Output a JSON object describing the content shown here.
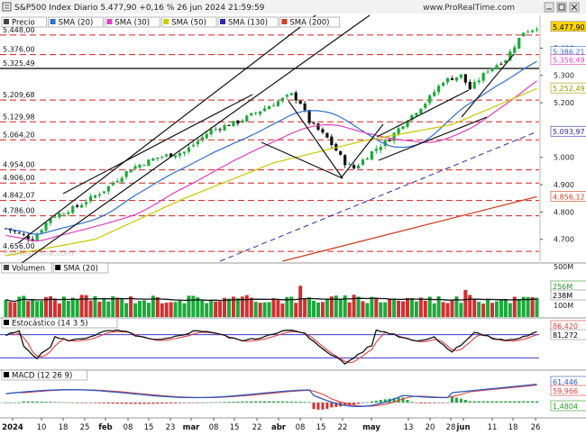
{
  "header": {
    "title": "S&P500 Index Diario 5.477,90 +0,16 % 26 jun 2024 21:59:59",
    "site": "www.ProRealTime.com",
    "watermark": "ProRealTime.com"
  },
  "chart_data": [
    {
      "panel": "price",
      "type": "candlestick",
      "legend": [
        {
          "name": "Precio",
          "color": "#444444"
        },
        {
          "name": "SMA (20)",
          "color": "#2f6fd0"
        },
        {
          "name": "SMA (30)",
          "color": "#e040c0"
        },
        {
          "name": "SMA (50)",
          "color": "#cccc00"
        },
        {
          "name": "SMA (130)",
          "color": "#2a2aa8"
        },
        {
          "name": "SMA (200)",
          "color": "#d04020"
        }
      ],
      "ylim": [
        4620,
        5520
      ],
      "right_axis_ticks": [
        "5.400",
        "5.300",
        "5.200",
        "5.000",
        "4.900",
        "4.800",
        "4.700"
      ],
      "right_value_tags": [
        {
          "label": "5.477,90",
          "value": 5477.9,
          "bg": "#ffd500",
          "fg": "#000000"
        },
        {
          "label": "5.386,21",
          "value": 5386.21,
          "bg": "#ffffff",
          "fg": "#2f6fd0"
        },
        {
          "label": "5.356,49",
          "value": 5356.49,
          "bg": "#ffffff",
          "fg": "#e040c0"
        },
        {
          "label": "5.252,49",
          "value": 5252.49,
          "bg": "#ffffff",
          "fg": "#999900"
        },
        {
          "label": "5.093,97",
          "value": 5093.97,
          "bg": "#ffffff",
          "fg": "#2a2aa8"
        },
        {
          "label": "4.856,12",
          "value": 4856.12,
          "bg": "#ffffff",
          "fg": "#d04020"
        }
      ],
      "levels": [
        {
          "label": "5.448,00",
          "value": 5448,
          "style": "dashed"
        },
        {
          "label": "5.376,00",
          "value": 5376,
          "style": "dashed"
        },
        {
          "label": "5.325,49",
          "value": 5325.49,
          "style": "solid"
        },
        {
          "label": "5.209,68",
          "value": 5209.68,
          "style": "dashed"
        },
        {
          "label": "5.129,98",
          "value": 5129.98,
          "style": "dashed"
        },
        {
          "label": "5.064,20",
          "value": 5064.2,
          "style": "dashed"
        },
        {
          "label": "4.954,00",
          "value": 4954,
          "style": "dashed"
        },
        {
          "label": "4.906,00",
          "value": 4906,
          "style": "dashed"
        },
        {
          "label": "4.842,07",
          "value": 4842.07,
          "style": "dashed"
        },
        {
          "label": "4.786,00",
          "value": 4786,
          "style": "dashed"
        },
        {
          "label": "4.656,00",
          "value": 4656,
          "style": "dashed"
        }
      ],
      "bars_count": 120,
      "anchors": [
        [
          0,
          4740
        ],
        [
          6,
          4700
        ],
        [
          10,
          4780
        ],
        [
          16,
          4820
        ],
        [
          22,
          4880
        ],
        [
          28,
          4960
        ],
        [
          34,
          5000
        ],
        [
          40,
          5020
        ],
        [
          46,
          5100
        ],
        [
          52,
          5130
        ],
        [
          58,
          5180
        ],
        [
          64,
          5230
        ],
        [
          66,
          5200
        ],
        [
          68,
          5130
        ],
        [
          72,
          5070
        ],
        [
          76,
          4980
        ],
        [
          78,
          4960
        ],
        [
          82,
          5020
        ],
        [
          86,
          5070
        ],
        [
          90,
          5140
        ],
        [
          94,
          5200
        ],
        [
          98,
          5280
        ],
        [
          102,
          5300
        ],
        [
          104,
          5250
        ],
        [
          108,
          5320
        ],
        [
          112,
          5360
        ],
        [
          116,
          5460
        ],
        [
          118,
          5470
        ],
        [
          119,
          5478
        ]
      ],
      "sma20_end": 5386.21,
      "sma30_end": 5356.49,
      "sma50": [
        [
          0,
          4640
        ],
        [
          20,
          4700
        ],
        [
          40,
          4850
        ],
        [
          60,
          4980
        ],
        [
          80,
          5060
        ],
        [
          100,
          5120
        ],
        [
          119,
          5252
        ]
      ],
      "sma130": [
        [
          48,
          4620
        ],
        [
          119,
          5094
        ]
      ],
      "sma200": [
        [
          62,
          4620
        ],
        [
          119,
          4856
        ]
      ]
    },
    {
      "panel": "volume",
      "type": "bar",
      "legend": [
        {
          "name": "Volumen",
          "color": "#444444"
        },
        {
          "name": "SMA (20)",
          "color": "#000000"
        }
      ],
      "axis_labels": [
        "500M",
        "256M",
        "238M",
        "100M"
      ],
      "tags": [
        {
          "label": "256M",
          "bg": "#ffffff",
          "fg": "#2a9a2a"
        },
        {
          "label": "238M",
          "bg": "#ffffff",
          "fg": "#000000"
        }
      ],
      "ylim": [
        0,
        500
      ]
    },
    {
      "panel": "stochastic",
      "type": "line",
      "legend": [
        {
          "name": "Estocástico (14 3 5)",
          "color": "#000000"
        }
      ],
      "tags": [
        {
          "label": "86,420",
          "value": 86.42,
          "fg": "#e04040"
        },
        {
          "label": "81,272",
          "value": 81.272,
          "fg": "#000000"
        }
      ],
      "ylim": [
        0,
        100
      ],
      "levels": [
        80,
        20
      ]
    },
    {
      "panel": "macd",
      "type": "line",
      "legend": [
        {
          "name": "MACD (12 26 9)",
          "color": "#000000"
        }
      ],
      "tags": [
        {
          "label": "61,446",
          "value": 61.446,
          "fg": "#2a5ac0"
        },
        {
          "label": "59,966",
          "value": 59.966,
          "fg": "#e04040"
        },
        {
          "label": "1,4804",
          "value": 1.4804,
          "fg": "#2a9a2a"
        }
      ]
    }
  ],
  "x_axis": {
    "labels": [
      {
        "text": "2024",
        "bold": true
      },
      {
        "text": "10"
      },
      {
        "text": "18"
      },
      {
        "text": "25"
      },
      {
        "text": "feb",
        "bold": true
      },
      {
        "text": "08"
      },
      {
        "text": "15"
      },
      {
        "text": "23"
      },
      {
        "text": "mar",
        "bold": true
      },
      {
        "text": "08"
      },
      {
        "text": "15"
      },
      {
        "text": "22"
      },
      {
        "text": "abr",
        "bold": true
      },
      {
        "text": "08"
      },
      {
        "text": "15"
      },
      {
        "text": "22"
      },
      {
        "text": "may",
        "bold": true
      },
      {
        "text": "13"
      },
      {
        "text": "20"
      },
      {
        "text": "28"
      },
      {
        "text": "jun",
        "bold": true
      },
      {
        "text": "11"
      },
      {
        "text": "18"
      },
      {
        "text": "26"
      }
    ]
  },
  "colors": {
    "up": "#1aaa3a",
    "down": "#111111",
    "level": "#d02020",
    "accent_tag": "#ffd500"
  }
}
